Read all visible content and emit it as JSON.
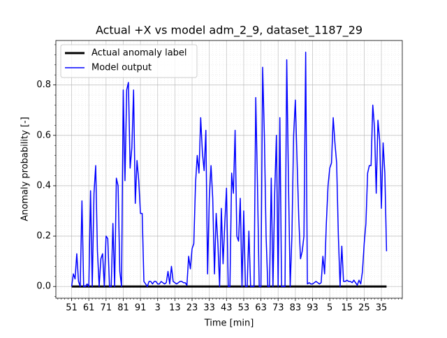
{
  "chart_data": {
    "type": "line",
    "title": "Actual +X vs model adm_2_9, dataset_1187_29",
    "xlabel": "Time [min]",
    "ylabel": "Anomaly probability [-]",
    "series": [
      {
        "name": "Actual anomaly label",
        "color": "#000000",
        "linewidth": 3,
        "values": [
          0,
          0,
          0,
          0,
          0,
          0,
          0,
          0,
          0,
          0,
          0,
          0,
          0,
          0,
          0,
          0,
          0,
          0,
          0,
          0,
          0,
          0,
          0,
          0,
          0,
          0,
          0,
          0,
          0,
          0,
          0,
          0,
          0,
          0,
          0,
          0,
          0,
          0,
          0,
          0,
          0,
          0,
          0,
          0,
          0,
          0,
          0,
          0,
          0,
          0,
          0,
          0,
          0,
          0,
          0,
          0,
          0,
          0,
          0,
          0,
          0,
          0,
          0,
          0,
          0,
          0,
          0,
          0,
          0,
          0,
          0,
          0,
          0,
          0,
          0,
          0,
          0,
          0,
          0,
          0,
          0,
          0,
          0,
          0,
          0,
          0,
          0,
          0,
          0,
          0,
          0,
          0,
          0,
          0,
          0,
          0,
          0,
          0,
          0,
          0,
          0,
          0,
          0,
          0,
          0,
          0,
          0,
          0,
          0,
          0,
          0,
          0,
          0,
          0,
          0,
          0,
          0,
          0,
          0,
          0,
          0,
          0,
          0,
          0,
          0,
          0,
          0,
          0,
          0,
          0,
          0,
          0,
          0,
          0,
          0,
          0,
          0,
          0,
          0,
          0,
          0,
          0,
          0,
          0,
          0,
          0,
          0,
          0,
          0,
          0,
          0,
          0,
          0,
          0,
          0,
          0,
          0,
          0,
          0,
          0,
          0,
          0,
          0,
          0,
          0,
          0,
          0,
          0,
          0,
          0,
          0,
          0,
          0,
          0,
          0,
          0,
          0,
          0,
          0,
          0,
          0,
          0,
          0,
          0
        ]
      },
      {
        "name": "Model output",
        "color": "#0000ff",
        "linewidth": 1.5,
        "values": [
          0,
          0.05,
          0.03,
          0.13,
          0.02,
          0,
          0.34,
          0,
          0,
          0.01,
          0,
          0.38,
          0,
          0.37,
          0.48,
          0.14,
          0,
          0.11,
          0.13,
          0,
          0.2,
          0.19,
          0,
          0,
          0.25,
          0,
          0.43,
          0.4,
          0.06,
          0,
          0.78,
          0.42,
          0.78,
          0.81,
          0.47,
          0.55,
          0.78,
          0.33,
          0.5,
          0.42,
          0.29,
          0.29,
          0.02,
          0.01,
          0,
          0.02,
          0.02,
          0.01,
          0.02,
          0.02,
          0.01,
          0.01,
          0.02,
          0.015,
          0.01,
          0.015,
          0.06,
          0.01,
          0.08,
          0.02,
          0.015,
          0.01,
          0.015,
          0.02,
          0.02,
          0.015,
          0.015,
          0.005,
          0.12,
          0.07,
          0.15,
          0.17,
          0.41,
          0.52,
          0.45,
          0.67,
          0.53,
          0.46,
          0.62,
          0.05,
          0.35,
          0.48,
          0.35,
          0.05,
          0.29,
          0.17,
          0,
          0.31,
          0.09,
          0.25,
          0.39,
          0,
          0,
          0.45,
          0.37,
          0.62,
          0.2,
          0.18,
          0.35,
          0,
          0.3,
          0,
          0,
          0.22,
          0,
          0,
          0,
          0.75,
          0.4,
          0,
          0,
          0.87,
          0.6,
          0.2,
          0,
          0,
          0.43,
          0,
          0.37,
          0.6,
          0,
          0.67,
          0,
          0,
          0,
          0.9,
          0.42,
          0,
          0.2,
          0.6,
          0.74,
          0.5,
          0.27,
          0.11,
          0.14,
          0.2,
          0.93,
          0.01,
          0.015,
          0.01,
          0.01,
          0.015,
          0.02,
          0.015,
          0.01,
          0.015,
          0.12,
          0.05,
          0.25,
          0.4,
          0.47,
          0.49,
          0.67,
          0.57,
          0.49,
          0.2,
          0,
          0.16,
          0.02,
          0.02,
          0.025,
          0.02,
          0.02,
          0.015,
          0.025,
          0.015,
          0.005,
          0.025,
          0.01,
          0.06,
          0.17,
          0.25,
          0.45,
          0.48,
          0.48,
          0.72,
          0.63,
          0.37,
          0.66,
          0.58,
          0.31,
          0.57,
          0.45,
          0.14
        ]
      }
    ],
    "xlim": [
      -9.15,
      192.15
    ],
    "xticks": [
      {
        "value": 0,
        "label": "51"
      },
      {
        "value": 10,
        "label": "61"
      },
      {
        "value": 20,
        "label": "71"
      },
      {
        "value": 30,
        "label": "81"
      },
      {
        "value": 40,
        "label": "91"
      },
      {
        "value": 50,
        "label": "3"
      },
      {
        "value": 60,
        "label": "13"
      },
      {
        "value": 70,
        "label": "23"
      },
      {
        "value": 80,
        "label": "33"
      },
      {
        "value": 90,
        "label": "43"
      },
      {
        "value": 100,
        "label": "53"
      },
      {
        "value": 110,
        "label": "63"
      },
      {
        "value": 120,
        "label": "73"
      },
      {
        "value": 130,
        "label": "83"
      },
      {
        "value": 140,
        "label": "93"
      },
      {
        "value": 150,
        "label": "5"
      },
      {
        "value": 160,
        "label": "15"
      },
      {
        "value": 170,
        "label": "25"
      },
      {
        "value": 180,
        "label": "35"
      }
    ],
    "ylim": [
      -0.0465,
      0.9765
    ],
    "yticks": [
      {
        "value": 0,
        "label": "0.0"
      },
      0.2,
      0.4,
      0.6,
      0.8
    ],
    "grid": true,
    "minor_grid": true,
    "legend": "upper-left"
  }
}
